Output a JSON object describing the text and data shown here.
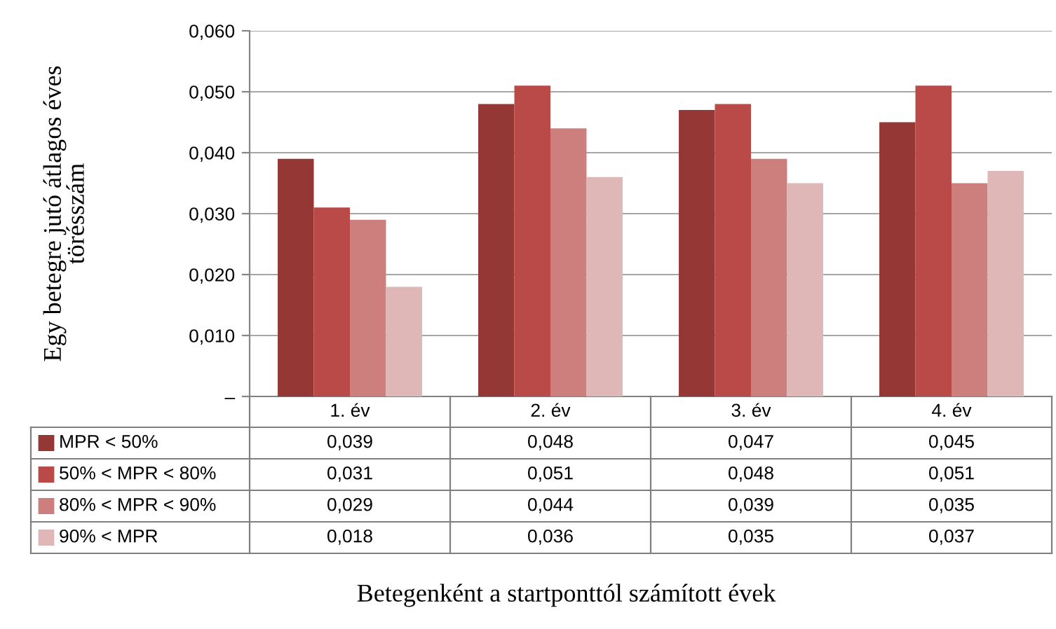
{
  "chart_data": {
    "type": "bar",
    "ylabel": "Egy betegre jutó átlagos éves\ntörésszám",
    "annotations": [
      "Betegenként a startponttól számított évek"
    ],
    "categories": [
      "1. év",
      "2. év",
      "3. év",
      "4. év"
    ],
    "series": [
      {
        "name": "MPR < 50%",
        "color": "#953735",
        "values": [
          0.039,
          0.048,
          0.047,
          0.045
        ],
        "value_labels": [
          "0,039",
          "0,048",
          "0,047",
          "0,045"
        ]
      },
      {
        "name": "50% < MPR < 80%",
        "color": "#b94a48",
        "values": [
          0.031,
          0.051,
          0.048,
          0.051
        ],
        "value_labels": [
          "0,031",
          "0,051",
          "0,048",
          "0,051"
        ]
      },
      {
        "name": "80% < MPR < 90%",
        "color": "#cd7f7e",
        "values": [
          0.029,
          0.044,
          0.039,
          0.035
        ],
        "value_labels": [
          "0,029",
          "0,044",
          "0,039",
          "0,035"
        ]
      },
      {
        "name": "90% < MPR",
        "color": "#dfb7b6",
        "values": [
          0.018,
          0.036,
          0.035,
          0.037
        ],
        "value_labels": [
          "0,018",
          "0,036",
          "0,035",
          "0,037"
        ]
      }
    ],
    "ylim": [
      0,
      0.06
    ],
    "yticks": [
      {
        "value": 0,
        "label": "–"
      },
      {
        "value": 0.01,
        "label": "0,010"
      },
      {
        "value": 0.02,
        "label": "0,020"
      },
      {
        "value": 0.03,
        "label": "0,030"
      },
      {
        "value": 0.04,
        "label": "0,040"
      },
      {
        "value": 0.05,
        "label": "0,050"
      },
      {
        "value": 0.06,
        "label": "0,060"
      }
    ],
    "grid": "y",
    "legend": "bottom left"
  }
}
